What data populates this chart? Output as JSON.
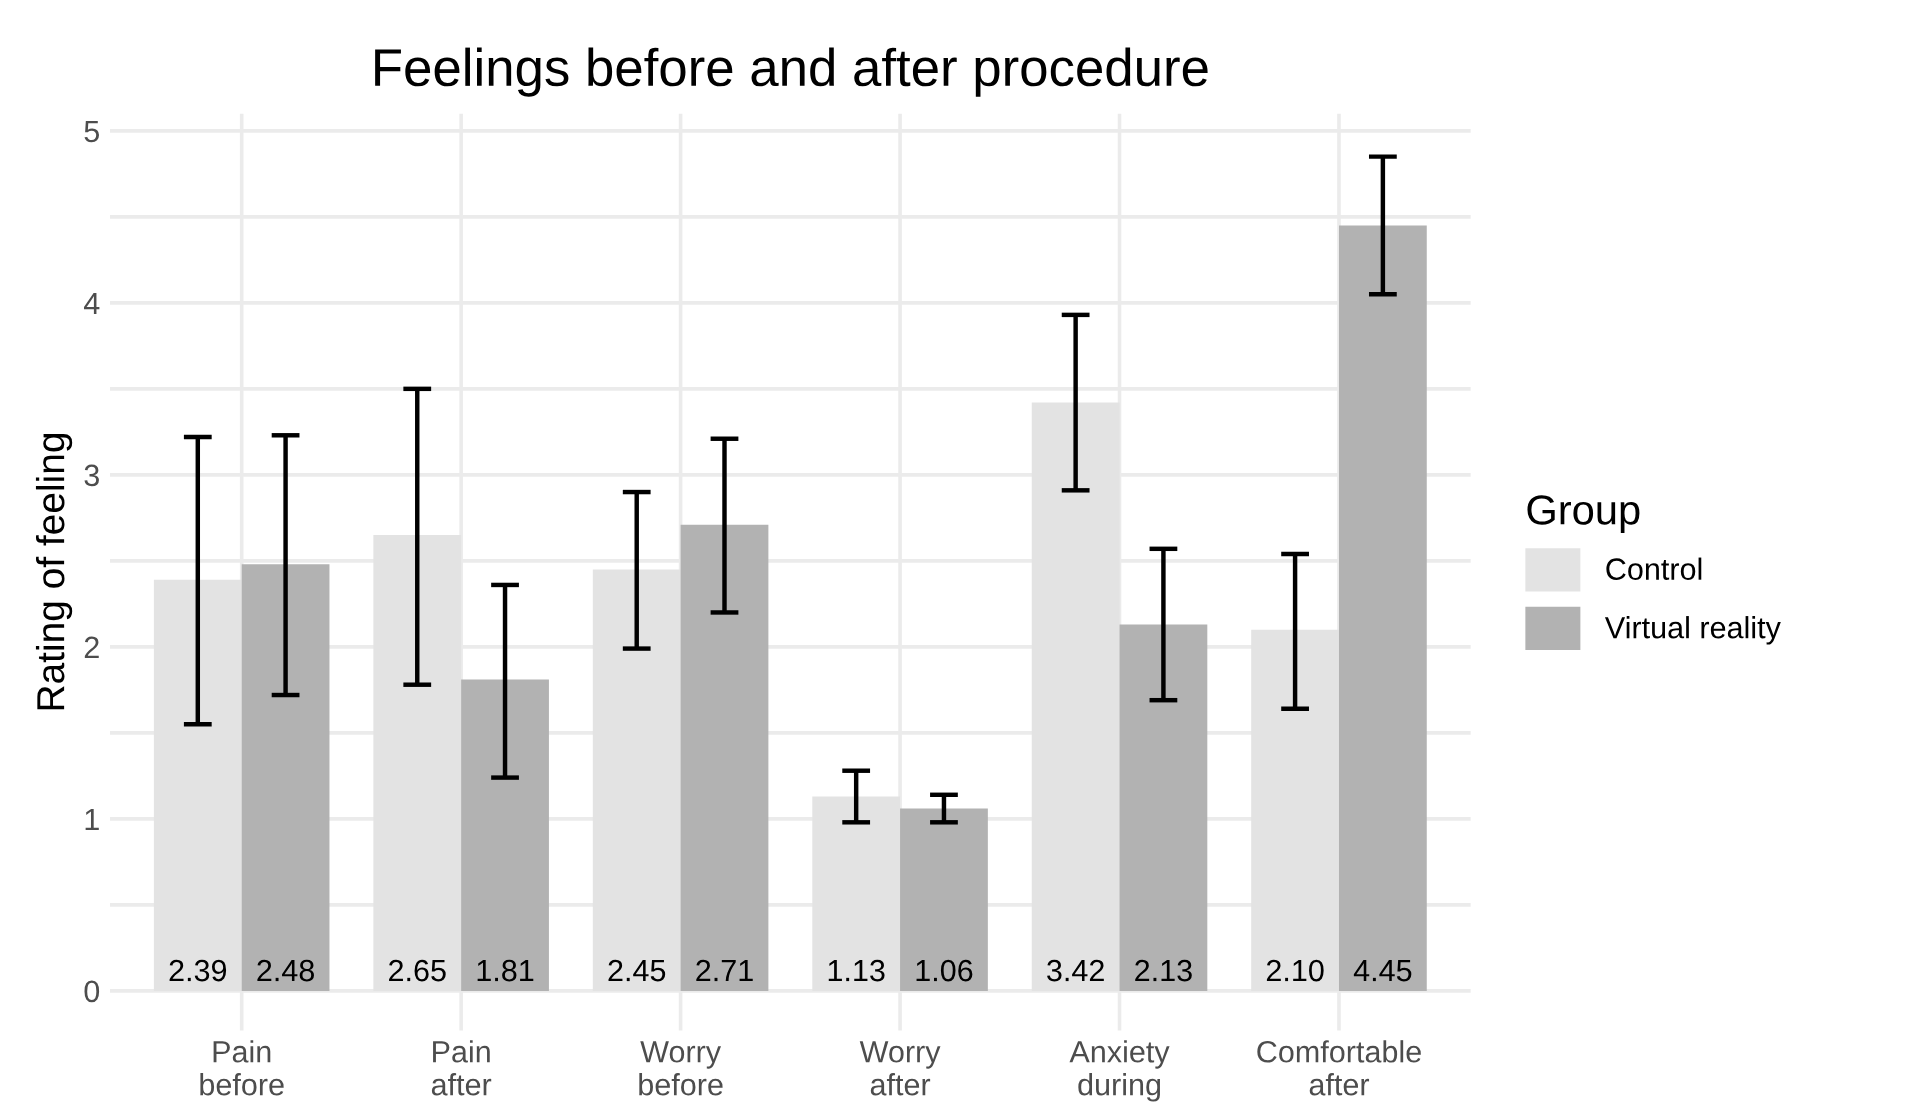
{
  "chart_data": {
    "type": "bar",
    "title": "Feelings before and after procedure",
    "ylabel": "Rating of feeling",
    "legend_title": "Group",
    "categories": [
      "Pain\nbefore",
      "Pain\nafter",
      "Worry\nbefore",
      "Worry\nafter",
      "Anxiety\nduring",
      "Comfortable\nafter"
    ],
    "series": [
      {
        "name": "Control",
        "color": "#e3e3e3",
        "values": [
          2.39,
          2.65,
          2.45,
          1.13,
          3.42,
          2.1
        ],
        "value_labels": [
          "2.39",
          "2.65",
          "2.45",
          "1.13",
          "3.42",
          "2.10"
        ],
        "errors": [
          [
            1.55,
            3.22
          ],
          [
            1.78,
            3.5
          ],
          [
            1.99,
            2.9
          ],
          [
            0.98,
            1.28
          ],
          [
            2.91,
            3.93
          ],
          [
            1.64,
            2.54
          ]
        ]
      },
      {
        "name": "Virtual reality",
        "color": "#b2b2b2",
        "values": [
          2.48,
          1.81,
          2.71,
          1.06,
          2.13,
          4.45
        ],
        "value_labels": [
          "2.48",
          "1.81",
          "2.71",
          "1.06",
          "2.13",
          "4.45"
        ],
        "errors": [
          [
            1.72,
            3.23
          ],
          [
            1.24,
            2.36
          ],
          [
            2.2,
            3.21
          ],
          [
            0.98,
            1.14
          ],
          [
            1.69,
            2.57
          ],
          [
            4.05,
            4.85
          ]
        ]
      }
    ],
    "ylim": [
      -0.23,
      5.1
    ],
    "yticks": [
      0,
      {
        "value": 0.5,
        "label": null
      },
      1,
      {
        "value": 1.5,
        "label": null
      },
      2,
      {
        "value": 2.5,
        "label": null
      },
      3,
      {
        "value": 3.5,
        "label": null
      },
      4,
      {
        "value": 4.5,
        "label": null
      },
      5
    ],
    "grid": true,
    "legend": "right"
  }
}
